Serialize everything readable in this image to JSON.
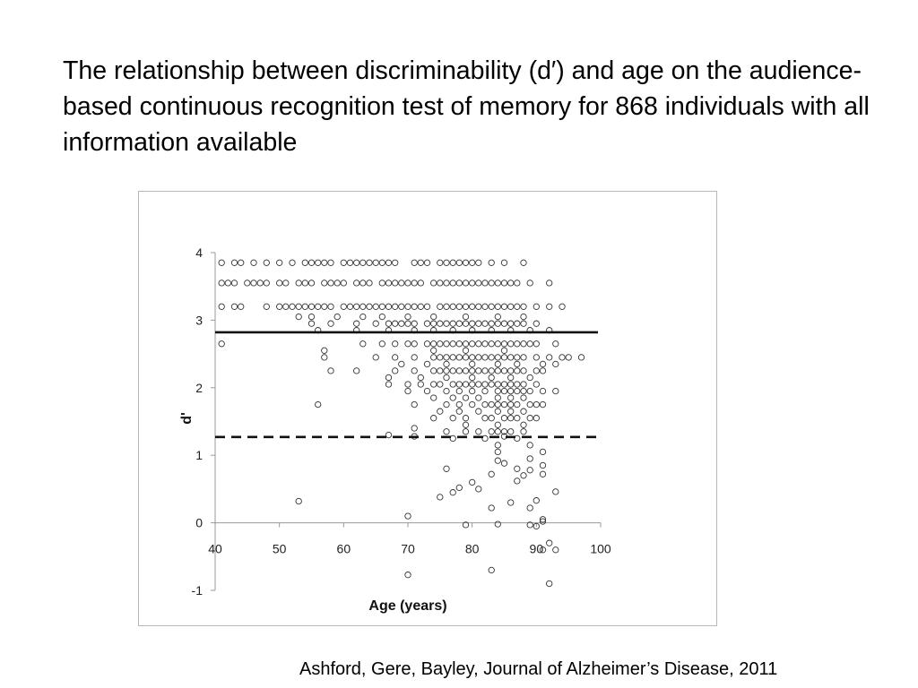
{
  "slide": {
    "title": "The relationship between discriminability (d′) and age on the audience-based continuous recognition test of memory for 868 individuals with all information available",
    "citation": "Ashford, Gere, Bayley, Journal of Alzheimer’s Disease, 2011"
  },
  "chart_data": {
    "type": "scatter",
    "title": "",
    "xlabel": "Age (years)",
    "ylabel": "d'",
    "xlim": [
      40,
      100
    ],
    "ylim": [
      -1,
      4
    ],
    "x_ticks": [
      "40",
      "50",
      "60",
      "70",
      "80",
      "90",
      "100"
    ],
    "y_ticks": [
      "-1",
      "0",
      "1",
      "2",
      "3",
      "4"
    ],
    "grid": false,
    "marker": "open-circle",
    "reference_lines": [
      {
        "style": "solid",
        "y": 2.82
      },
      {
        "style": "dashed",
        "y": 1.27
      }
    ],
    "points": [
      [
        41,
        3.85
      ],
      [
        43,
        3.85
      ],
      [
        44,
        3.85
      ],
      [
        46,
        3.85
      ],
      [
        48,
        3.85
      ],
      [
        50,
        3.85
      ],
      [
        52,
        3.85
      ],
      [
        54,
        3.85
      ],
      [
        55,
        3.85
      ],
      [
        56,
        3.85
      ],
      [
        57,
        3.85
      ],
      [
        58,
        3.85
      ],
      [
        60,
        3.85
      ],
      [
        61,
        3.85
      ],
      [
        62,
        3.85
      ],
      [
        63,
        3.85
      ],
      [
        64,
        3.85
      ],
      [
        65,
        3.85
      ],
      [
        66,
        3.85
      ],
      [
        67,
        3.85
      ],
      [
        68,
        3.85
      ],
      [
        71,
        3.85
      ],
      [
        72,
        3.85
      ],
      [
        73,
        3.85
      ],
      [
        75,
        3.85
      ],
      [
        76,
        3.85
      ],
      [
        77,
        3.85
      ],
      [
        78,
        3.85
      ],
      [
        79,
        3.85
      ],
      [
        80,
        3.85
      ],
      [
        81,
        3.85
      ],
      [
        83,
        3.85
      ],
      [
        85,
        3.85
      ],
      [
        88,
        3.85
      ],
      [
        41,
        3.55
      ],
      [
        42,
        3.55
      ],
      [
        43,
        3.55
      ],
      [
        45,
        3.55
      ],
      [
        46,
        3.55
      ],
      [
        47,
        3.55
      ],
      [
        48,
        3.55
      ],
      [
        50,
        3.55
      ],
      [
        51,
        3.55
      ],
      [
        53,
        3.55
      ],
      [
        54,
        3.55
      ],
      [
        55,
        3.55
      ],
      [
        57,
        3.55
      ],
      [
        58,
        3.55
      ],
      [
        59,
        3.55
      ],
      [
        60,
        3.55
      ],
      [
        62,
        3.55
      ],
      [
        63,
        3.55
      ],
      [
        64,
        3.55
      ],
      [
        66,
        3.55
      ],
      [
        67,
        3.55
      ],
      [
        68,
        3.55
      ],
      [
        69,
        3.55
      ],
      [
        70,
        3.55
      ],
      [
        71,
        3.55
      ],
      [
        72,
        3.55
      ],
      [
        74,
        3.55
      ],
      [
        75,
        3.55
      ],
      [
        76,
        3.55
      ],
      [
        77,
        3.55
      ],
      [
        78,
        3.55
      ],
      [
        79,
        3.55
      ],
      [
        80,
        3.55
      ],
      [
        81,
        3.55
      ],
      [
        82,
        3.55
      ],
      [
        83,
        3.55
      ],
      [
        84,
        3.55
      ],
      [
        85,
        3.55
      ],
      [
        86,
        3.55
      ],
      [
        87,
        3.55
      ],
      [
        89,
        3.55
      ],
      [
        92,
        3.55
      ],
      [
        41,
        3.2
      ],
      [
        43,
        3.2
      ],
      [
        44,
        3.2
      ],
      [
        48,
        3.2
      ],
      [
        50,
        3.2
      ],
      [
        51,
        3.2
      ],
      [
        52,
        3.2
      ],
      [
        53,
        3.2
      ],
      [
        54,
        3.2
      ],
      [
        55,
        3.2
      ],
      [
        56,
        3.2
      ],
      [
        57,
        3.2
      ],
      [
        58,
        3.2
      ],
      [
        60,
        3.2
      ],
      [
        61,
        3.2
      ],
      [
        62,
        3.2
      ],
      [
        63,
        3.2
      ],
      [
        64,
        3.2
      ],
      [
        65,
        3.2
      ],
      [
        66,
        3.2
      ],
      [
        67,
        3.2
      ],
      [
        68,
        3.2
      ],
      [
        69,
        3.2
      ],
      [
        70,
        3.2
      ],
      [
        71,
        3.2
      ],
      [
        72,
        3.2
      ],
      [
        73,
        3.2
      ],
      [
        75,
        3.2
      ],
      [
        76,
        3.2
      ],
      [
        77,
        3.2
      ],
      [
        78,
        3.2
      ],
      [
        79,
        3.2
      ],
      [
        80,
        3.2
      ],
      [
        81,
        3.2
      ],
      [
        82,
        3.2
      ],
      [
        83,
        3.2
      ],
      [
        84,
        3.2
      ],
      [
        85,
        3.2
      ],
      [
        86,
        3.2
      ],
      [
        87,
        3.2
      ],
      [
        88,
        3.2
      ],
      [
        90,
        3.2
      ],
      [
        92,
        3.2
      ],
      [
        94,
        3.2
      ],
      [
        53,
        3.05
      ],
      [
        55,
        3.05
      ],
      [
        59,
        3.05
      ],
      [
        63,
        3.05
      ],
      [
        66,
        3.05
      ],
      [
        70,
        3.05
      ],
      [
        74,
        3.05
      ],
      [
        79,
        3.05
      ],
      [
        84,
        3.05
      ],
      [
        88,
        3.05
      ],
      [
        55,
        2.95
      ],
      [
        58,
        2.95
      ],
      [
        62,
        2.95
      ],
      [
        65,
        2.95
      ],
      [
        67,
        2.95
      ],
      [
        68,
        2.95
      ],
      [
        69,
        2.95
      ],
      [
        70,
        2.95
      ],
      [
        71,
        2.95
      ],
      [
        73,
        2.95
      ],
      [
        74,
        2.95
      ],
      [
        75,
        2.95
      ],
      [
        76,
        2.95
      ],
      [
        77,
        2.95
      ],
      [
        78,
        2.95
      ],
      [
        79,
        2.95
      ],
      [
        80,
        2.95
      ],
      [
        81,
        2.95
      ],
      [
        82,
        2.95
      ],
      [
        83,
        2.95
      ],
      [
        84,
        2.95
      ],
      [
        85,
        2.95
      ],
      [
        86,
        2.95
      ],
      [
        87,
        2.95
      ],
      [
        88,
        2.95
      ],
      [
        90,
        2.95
      ],
      [
        56,
        2.85
      ],
      [
        62,
        2.85
      ],
      [
        67,
        2.85
      ],
      [
        71,
        2.85
      ],
      [
        74,
        2.85
      ],
      [
        77,
        2.85
      ],
      [
        80,
        2.85
      ],
      [
        83,
        2.85
      ],
      [
        86,
        2.85
      ],
      [
        89,
        2.85
      ],
      [
        92,
        2.85
      ],
      [
        41,
        2.65
      ],
      [
        63,
        2.65
      ],
      [
        66,
        2.65
      ],
      [
        68,
        2.65
      ],
      [
        70,
        2.65
      ],
      [
        71,
        2.65
      ],
      [
        73,
        2.65
      ],
      [
        74,
        2.65
      ],
      [
        75,
        2.65
      ],
      [
        76,
        2.65
      ],
      [
        77,
        2.65
      ],
      [
        78,
        2.65
      ],
      [
        79,
        2.65
      ],
      [
        80,
        2.65
      ],
      [
        81,
        2.65
      ],
      [
        82,
        2.65
      ],
      [
        83,
        2.65
      ],
      [
        84,
        2.65
      ],
      [
        85,
        2.65
      ],
      [
        86,
        2.65
      ],
      [
        87,
        2.65
      ],
      [
        88,
        2.65
      ],
      [
        89,
        2.65
      ],
      [
        90,
        2.65
      ],
      [
        93,
        2.65
      ],
      [
        57,
        2.55
      ],
      [
        74,
        2.55
      ],
      [
        79,
        2.55
      ],
      [
        85,
        2.55
      ],
      [
        57,
        2.45
      ],
      [
        65,
        2.45
      ],
      [
        68,
        2.45
      ],
      [
        71,
        2.45
      ],
      [
        74,
        2.45
      ],
      [
        75,
        2.45
      ],
      [
        76,
        2.45
      ],
      [
        77,
        2.45
      ],
      [
        78,
        2.45
      ],
      [
        79,
        2.45
      ],
      [
        80,
        2.45
      ],
      [
        81,
        2.45
      ],
      [
        82,
        2.45
      ],
      [
        83,
        2.45
      ],
      [
        84,
        2.45
      ],
      [
        85,
        2.45
      ],
      [
        86,
        2.45
      ],
      [
        87,
        2.45
      ],
      [
        88,
        2.45
      ],
      [
        90,
        2.45
      ],
      [
        92,
        2.45
      ],
      [
        94,
        2.45
      ],
      [
        95,
        2.45
      ],
      [
        97,
        2.45
      ],
      [
        69,
        2.35
      ],
      [
        73,
        2.35
      ],
      [
        76,
        2.35
      ],
      [
        80,
        2.35
      ],
      [
        84,
        2.35
      ],
      [
        87,
        2.35
      ],
      [
        91,
        2.35
      ],
      [
        93,
        2.35
      ],
      [
        58,
        2.25
      ],
      [
        62,
        2.25
      ],
      [
        68,
        2.25
      ],
      [
        71,
        2.25
      ],
      [
        74,
        2.25
      ],
      [
        75,
        2.25
      ],
      [
        76,
        2.25
      ],
      [
        77,
        2.25
      ],
      [
        78,
        2.25
      ],
      [
        79,
        2.25
      ],
      [
        80,
        2.25
      ],
      [
        81,
        2.25
      ],
      [
        82,
        2.25
      ],
      [
        83,
        2.25
      ],
      [
        84,
        2.25
      ],
      [
        85,
        2.25
      ],
      [
        86,
        2.25
      ],
      [
        87,
        2.25
      ],
      [
        88,
        2.25
      ],
      [
        90,
        2.25
      ],
      [
        91,
        2.25
      ],
      [
        67,
        2.15
      ],
      [
        72,
        2.15
      ],
      [
        76,
        2.15
      ],
      [
        80,
        2.15
      ],
      [
        83,
        2.15
      ],
      [
        86,
        2.15
      ],
      [
        89,
        2.15
      ],
      [
        67,
        2.05
      ],
      [
        70,
        2.05
      ],
      [
        72,
        2.05
      ],
      [
        74,
        2.05
      ],
      [
        75,
        2.05
      ],
      [
        77,
        2.05
      ],
      [
        78,
        2.05
      ],
      [
        79,
        2.05
      ],
      [
        80,
        2.05
      ],
      [
        81,
        2.05
      ],
      [
        82,
        2.05
      ],
      [
        83,
        2.05
      ],
      [
        84,
        2.05
      ],
      [
        85,
        2.05
      ],
      [
        86,
        2.05
      ],
      [
        87,
        2.05
      ],
      [
        88,
        2.05
      ],
      [
        90,
        2.05
      ],
      [
        70,
        1.95
      ],
      [
        73,
        1.95
      ],
      [
        76,
        1.95
      ],
      [
        78,
        1.95
      ],
      [
        80,
        1.95
      ],
      [
        82,
        1.95
      ],
      [
        84,
        1.95
      ],
      [
        85,
        1.95
      ],
      [
        86,
        1.95
      ],
      [
        87,
        1.95
      ],
      [
        88,
        1.95
      ],
      [
        89,
        1.95
      ],
      [
        91,
        1.95
      ],
      [
        93,
        1.95
      ],
      [
        74,
        1.85
      ],
      [
        77,
        1.85
      ],
      [
        79,
        1.85
      ],
      [
        81,
        1.85
      ],
      [
        84,
        1.85
      ],
      [
        86,
        1.85
      ],
      [
        88,
        1.85
      ],
      [
        56,
        1.75
      ],
      [
        71,
        1.75
      ],
      [
        76,
        1.75
      ],
      [
        78,
        1.75
      ],
      [
        80,
        1.75
      ],
      [
        82,
        1.75
      ],
      [
        83,
        1.75
      ],
      [
        84,
        1.75
      ],
      [
        85,
        1.75
      ],
      [
        86,
        1.75
      ],
      [
        87,
        1.75
      ],
      [
        89,
        1.75
      ],
      [
        90,
        1.75
      ],
      [
        91,
        1.75
      ],
      [
        75,
        1.65
      ],
      [
        78,
        1.65
      ],
      [
        81,
        1.65
      ],
      [
        84,
        1.65
      ],
      [
        86,
        1.65
      ],
      [
        88,
        1.65
      ],
      [
        74,
        1.55
      ],
      [
        77,
        1.55
      ],
      [
        79,
        1.55
      ],
      [
        82,
        1.55
      ],
      [
        83,
        1.55
      ],
      [
        85,
        1.55
      ],
      [
        86,
        1.55
      ],
      [
        87,
        1.55
      ],
      [
        89,
        1.55
      ],
      [
        90,
        1.55
      ],
      [
        79,
        1.45
      ],
      [
        84,
        1.45
      ],
      [
        88,
        1.45
      ],
      [
        71,
        1.4
      ],
      [
        76,
        1.35
      ],
      [
        79,
        1.35
      ],
      [
        81,
        1.35
      ],
      [
        83,
        1.35
      ],
      [
        84,
        1.35
      ],
      [
        85,
        1.35
      ],
      [
        86,
        1.35
      ],
      [
        88,
        1.35
      ],
      [
        67,
        1.3
      ],
      [
        71,
        1.28
      ],
      [
        77,
        1.25
      ],
      [
        82,
        1.25
      ],
      [
        85,
        1.28
      ],
      [
        87,
        1.25
      ],
      [
        84,
        1.15
      ],
      [
        89,
        1.15
      ],
      [
        84,
        1.05
      ],
      [
        91,
        1.05
      ],
      [
        89,
        0.95
      ],
      [
        84,
        0.92
      ],
      [
        85,
        0.88
      ],
      [
        91,
        0.85
      ],
      [
        76,
        0.8
      ],
      [
        87,
        0.8
      ],
      [
        89,
        0.78
      ],
      [
        83,
        0.72
      ],
      [
        88,
        0.7
      ],
      [
        91,
        0.72
      ],
      [
        80,
        0.6
      ],
      [
        87,
        0.62
      ],
      [
        78,
        0.52
      ],
      [
        81,
        0.5
      ],
      [
        75,
        0.38
      ],
      [
        77,
        0.45
      ],
      [
        93,
        0.46
      ],
      [
        53,
        0.32
      ],
      [
        90,
        0.33
      ],
      [
        86,
        0.3
      ],
      [
        83,
        0.22
      ],
      [
        89,
        0.22
      ],
      [
        70,
        0.1
      ],
      [
        91,
        0.05
      ],
      [
        79,
        -0.03
      ],
      [
        84,
        -0.02
      ],
      [
        89,
        -0.03
      ],
      [
        90,
        -0.05
      ],
      [
        91,
        0.02
      ],
      [
        92,
        -0.3
      ],
      [
        91,
        -0.4
      ],
      [
        93,
        -0.4
      ],
      [
        83,
        -0.7
      ],
      [
        70,
        -0.77
      ],
      [
        92,
        -0.9
      ]
    ]
  }
}
